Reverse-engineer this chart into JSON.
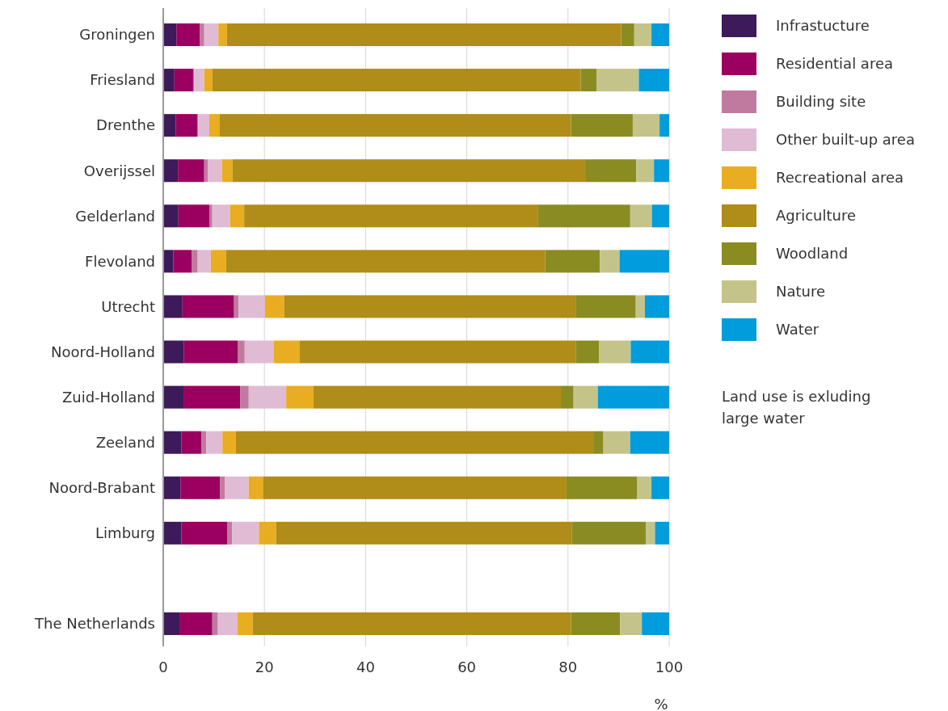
{
  "chart_data": {
    "type": "bar",
    "orientation": "horizontal",
    "stacked": true,
    "xlabel": "%",
    "categories": [
      "Groningen",
      "Friesland",
      "Drenthe",
      "Overijssel",
      "Gelderland",
      "Flevoland",
      "Utrecht",
      "Noord-Holland",
      "Zuid-Holland",
      "Zeeland",
      "Noord-Brabant",
      "Limburg",
      null,
      "The Netherlands"
    ],
    "series": [
      {
        "name": "Infrastucture",
        "color": "#3d1a5a",
        "values": [
          2.6,
          2.2,
          2.5,
          2.9,
          3.0,
          2.0,
          3.8,
          4.1,
          4.0,
          3.6,
          3.4,
          3.6,
          null,
          3.2
        ]
      },
      {
        "name": "Residential area",
        "color": "#9b0060",
        "values": [
          4.6,
          3.7,
          4.2,
          5.2,
          6.1,
          3.6,
          10.2,
          10.6,
          11.2,
          3.9,
          7.8,
          9.1,
          null,
          6.5
        ]
      },
      {
        "name": "Building site",
        "color": "#c07aa0",
        "values": [
          0.9,
          0.2,
          0.2,
          0.7,
          0.6,
          1.2,
          0.9,
          1.4,
          1.7,
          1.0,
          1.0,
          0.9,
          null,
          1.1
        ]
      },
      {
        "name": "Other built-up area",
        "color": "#e0bcd4",
        "values": [
          2.8,
          2.0,
          2.2,
          2.8,
          3.5,
          2.6,
          5.2,
          5.7,
          7.4,
          3.2,
          4.7,
          5.3,
          null,
          3.9
        ]
      },
      {
        "name": "Recreational area",
        "color": "#e8ad20",
        "values": [
          1.7,
          1.6,
          2.0,
          2.1,
          2.8,
          3.0,
          3.8,
          5.2,
          5.4,
          2.6,
          2.8,
          3.4,
          null,
          3.0
        ]
      },
      {
        "name": "Agriculture",
        "color": "#b08c18",
        "values": [
          77.9,
          72.8,
          69.5,
          69.7,
          58.1,
          63.1,
          57.6,
          54.6,
          48.9,
          70.7,
          60.0,
          58.5,
          null,
          62.9
        ]
      },
      {
        "name": "Woodland",
        "color": "#8a8c22",
        "values": [
          2.6,
          3.2,
          12.2,
          10.1,
          18.2,
          10.8,
          11.9,
          4.5,
          2.5,
          2.0,
          14.0,
          14.6,
          null,
          9.7
        ]
      },
      {
        "name": "Nature",
        "color": "#c4c48a",
        "values": [
          3.4,
          8.3,
          5.3,
          3.5,
          4.3,
          3.9,
          1.8,
          6.3,
          4.8,
          5.3,
          2.8,
          1.8,
          null,
          4.3
        ]
      },
      {
        "name": "Water",
        "color": "#009cdc",
        "values": [
          3.5,
          6.0,
          1.9,
          3.0,
          3.4,
          9.8,
          4.8,
          7.6,
          14.1,
          7.7,
          3.5,
          2.8,
          null,
          5.4
        ]
      }
    ],
    "xlim": [
      0,
      100
    ],
    "xticks": [
      0,
      20,
      40,
      60,
      80,
      100
    ],
    "grid": "x",
    "legend": "right",
    "annotations": [
      "Land use is exluding large water"
    ]
  }
}
